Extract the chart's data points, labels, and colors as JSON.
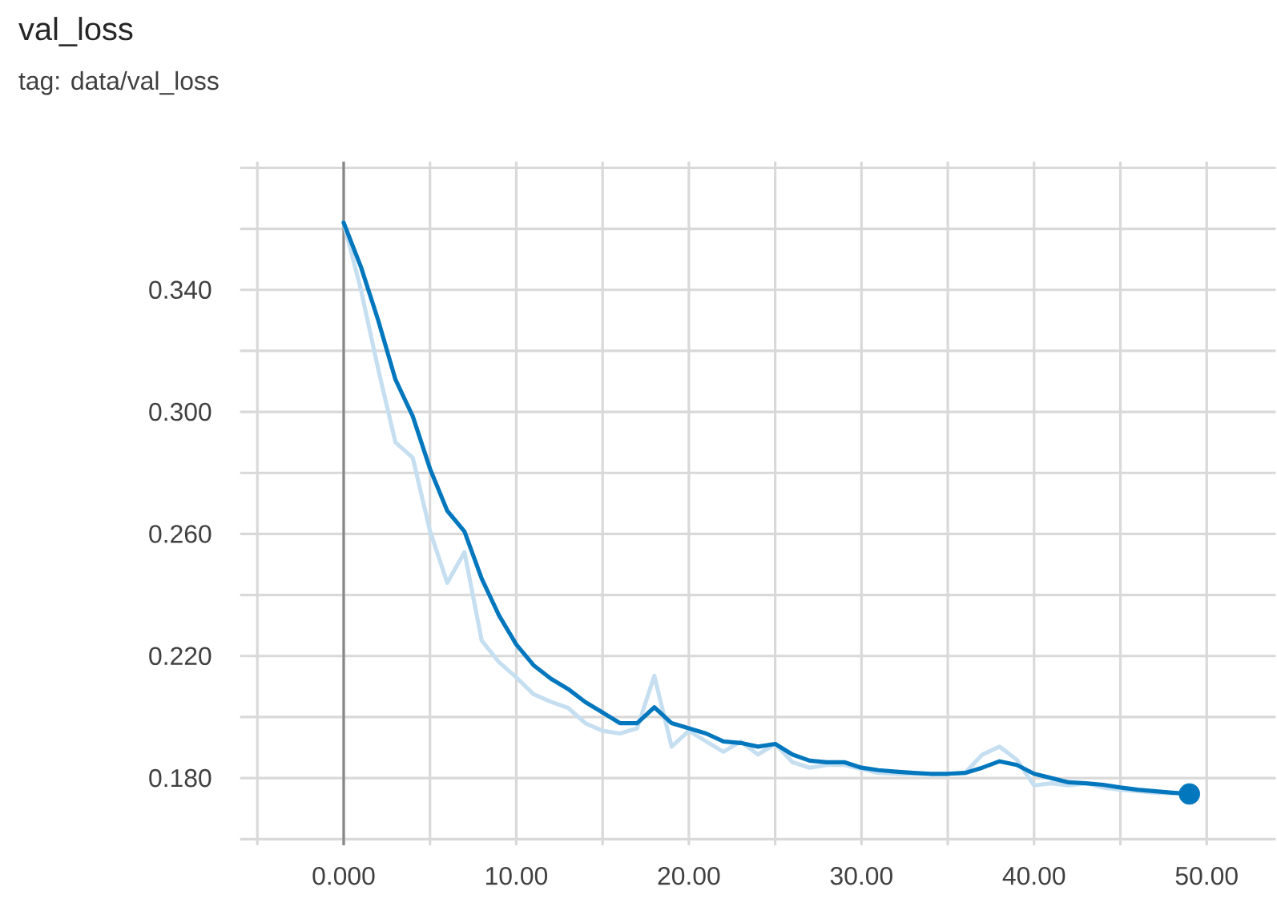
{
  "chart_data": {
    "type": "line",
    "title": "val_loss",
    "subtitle": "tag: data/val_loss",
    "x": [
      0,
      1,
      2,
      3,
      4,
      5,
      6,
      7,
      8,
      9,
      10,
      11,
      12,
      13,
      14,
      15,
      16,
      17,
      18,
      19,
      20,
      21,
      22,
      23,
      24,
      25,
      26,
      27,
      28,
      29,
      30,
      31,
      32,
      33,
      34,
      35,
      36,
      37,
      38,
      39,
      40,
      41,
      42,
      43,
      44,
      45,
      46,
      47,
      48,
      49
    ],
    "series": [
      {
        "color": "#c6dff0",
        "values": [
          0.362,
          0.34,
          0.314,
          0.29,
          0.285,
          0.261,
          0.244,
          0.254,
          0.225,
          0.218,
          0.213,
          0.2075,
          0.205,
          0.203,
          0.198,
          0.1955,
          0.1946,
          0.1963,
          0.2135,
          0.1903,
          0.1955,
          0.192,
          0.1886,
          0.192,
          0.1877,
          0.1912,
          0.1852,
          0.1834,
          0.1843,
          0.1843,
          0.183,
          0.1817,
          0.1814,
          0.1814,
          0.1812,
          0.1814,
          0.1817,
          0.1877,
          0.1903,
          0.186,
          0.1776,
          0.1783,
          0.1776,
          0.1783,
          0.1769,
          0.1762,
          0.1757,
          0.1752,
          0.175,
          null
        ]
      },
      {
        "color": "#0277bd",
        "values": [
          0.362,
          0.3475,
          0.33,
          0.3106,
          0.2986,
          0.2814,
          0.2676,
          0.2608,
          0.2453,
          0.2333,
          0.2238,
          0.217,
          0.2126,
          0.2092,
          0.2049,
          0.2015,
          0.198,
          0.198,
          0.2032,
          0.198,
          0.1963,
          0.1946,
          0.192,
          0.1915,
          0.1903,
          0.1912,
          0.1877,
          0.1857,
          0.1852,
          0.1852,
          0.1834,
          0.1826,
          0.1821,
          0.1817,
          0.1814,
          0.1814,
          0.1817,
          0.1834,
          0.1855,
          0.1843,
          0.1814,
          0.18,
          0.1786,
          0.1783,
          0.1778,
          0.1769,
          0.1762,
          0.1757,
          0.1752,
          0.1748
        ]
      },
      {
        "type": "scatter",
        "color": "#0277bd",
        "x": [
          49
        ],
        "values": [
          0.1748
        ],
        "marker": "circle"
      }
    ],
    "xlim": [
      -6,
      54
    ],
    "ylim": [
      0.158,
      0.382
    ],
    "xticks": [
      {
        "value": -5,
        "label": null
      },
      {
        "value": 0,
        "label": "0.000"
      },
      {
        "value": 5,
        "label": null
      },
      {
        "value": 10,
        "label": "10.00"
      },
      {
        "value": 15,
        "label": null
      },
      {
        "value": 20,
        "label": "20.00"
      },
      {
        "value": 25,
        "label": null
      },
      {
        "value": 30,
        "label": "30.00"
      },
      {
        "value": 35,
        "label": null
      },
      {
        "value": 40,
        "label": "40.00"
      },
      {
        "value": 45,
        "label": null
      },
      {
        "value": 50,
        "label": "50.00"
      }
    ],
    "yticks": [
      {
        "value": 0.16,
        "label": null
      },
      {
        "value": 0.18,
        "label": "0.180"
      },
      {
        "value": 0.2,
        "label": null
      },
      {
        "value": 0.22,
        "label": "0.220"
      },
      {
        "value": 0.24,
        "label": null
      },
      {
        "value": 0.26,
        "label": "0.260"
      },
      {
        "value": 0.28,
        "label": null
      },
      {
        "value": 0.3,
        "label": "0.300"
      },
      {
        "value": 0.32,
        "label": null
      },
      {
        "value": 0.34,
        "label": "0.340"
      },
      {
        "value": 0.36,
        "label": null
      },
      {
        "value": 0.38,
        "label": null
      }
    ],
    "grid": true,
    "ref_lines": [
      {
        "axis": "x",
        "value": 0,
        "color": "#888888"
      }
    ]
  }
}
